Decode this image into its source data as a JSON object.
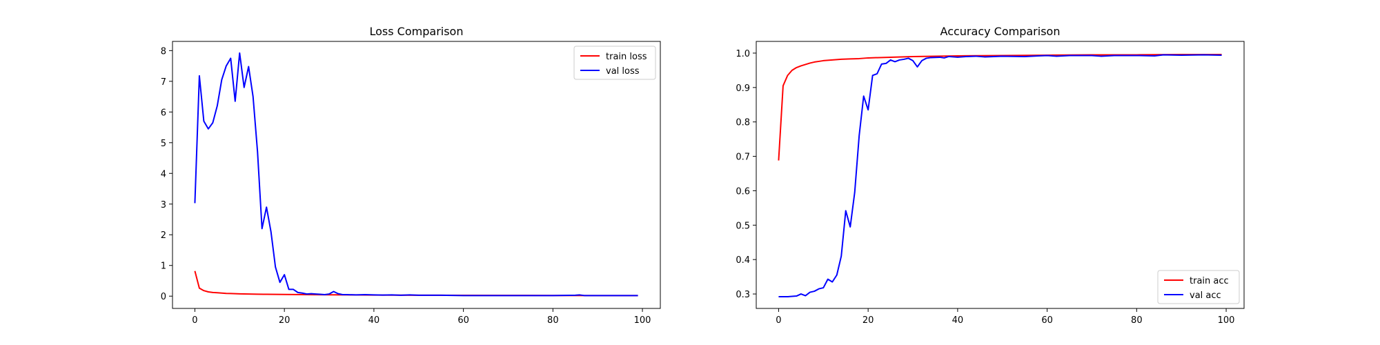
{
  "chart_data": [
    {
      "type": "line",
      "title": "Loss Comparison",
      "xlabel": "",
      "ylabel": "",
      "xlim": [
        -5,
        104
      ],
      "ylim": [
        -0.4,
        8.3
      ],
      "x_ticks": [
        0,
        20,
        40,
        60,
        80,
        100
      ],
      "y_ticks": [
        0,
        1,
        2,
        3,
        4,
        5,
        6,
        7,
        8
      ],
      "grid": false,
      "legend_position": "top-right",
      "series": [
        {
          "name": "train loss",
          "color": "#ff0000",
          "points": [
            [
              0,
              0.82
            ],
            [
              1,
              0.26
            ],
            [
              2,
              0.18
            ],
            [
              3,
              0.14
            ],
            [
              4,
              0.12
            ],
            [
              5,
              0.11
            ],
            [
              6,
              0.1
            ],
            [
              7,
              0.09
            ],
            [
              8,
              0.085
            ],
            [
              9,
              0.08
            ],
            [
              10,
              0.075
            ],
            [
              12,
              0.07
            ],
            [
              14,
              0.065
            ],
            [
              16,
              0.06
            ],
            [
              18,
              0.058
            ],
            [
              20,
              0.055
            ],
            [
              25,
              0.05
            ],
            [
              30,
              0.045
            ],
            [
              35,
              0.04
            ],
            [
              40,
              0.036
            ],
            [
              50,
              0.03
            ],
            [
              60,
              0.027
            ],
            [
              70,
              0.025
            ],
            [
              80,
              0.022
            ],
            [
              90,
              0.02
            ],
            [
              99,
              0.018
            ]
          ]
        },
        {
          "name": "val loss",
          "color": "#0000ff",
          "points": [
            [
              0,
              3.03
            ],
            [
              1,
              7.18
            ],
            [
              2,
              5.7
            ],
            [
              3,
              5.45
            ],
            [
              4,
              5.65
            ],
            [
              5,
              6.2
            ],
            [
              6,
              7.05
            ],
            [
              7,
              7.5
            ],
            [
              8,
              7.75
            ],
            [
              9,
              6.35
            ],
            [
              10,
              7.92
            ],
            [
              11,
              6.8
            ],
            [
              12,
              7.48
            ],
            [
              13,
              6.5
            ],
            [
              14,
              4.7
            ],
            [
              15,
              2.2
            ],
            [
              16,
              2.9
            ],
            [
              17,
              2.1
            ],
            [
              18,
              0.95
            ],
            [
              19,
              0.45
            ],
            [
              20,
              0.7
            ],
            [
              21,
              0.22
            ],
            [
              22,
              0.22
            ],
            [
              23,
              0.12
            ],
            [
              24,
              0.1
            ],
            [
              25,
              0.07
            ],
            [
              26,
              0.08
            ],
            [
              27,
              0.07
            ],
            [
              28,
              0.06
            ],
            [
              29,
              0.05
            ],
            [
              30,
              0.07
            ],
            [
              31,
              0.15
            ],
            [
              32,
              0.08
            ],
            [
              33,
              0.05
            ],
            [
              34,
              0.05
            ],
            [
              36,
              0.04
            ],
            [
              38,
              0.05
            ],
            [
              40,
              0.04
            ],
            [
              42,
              0.035
            ],
            [
              44,
              0.04
            ],
            [
              46,
              0.03
            ],
            [
              48,
              0.04
            ],
            [
              50,
              0.03
            ],
            [
              55,
              0.03
            ],
            [
              60,
              0.02
            ],
            [
              65,
              0.02
            ],
            [
              70,
              0.02
            ],
            [
              75,
              0.02
            ],
            [
              80,
              0.02
            ],
            [
              85,
              0.03
            ],
            [
              86,
              0.04
            ],
            [
              87,
              0.02
            ],
            [
              90,
              0.02
            ],
            [
              99,
              0.02
            ]
          ]
        }
      ]
    },
    {
      "type": "line",
      "title": "Accuracy Comparison",
      "xlabel": "",
      "ylabel": "",
      "xlim": [
        -5,
        104
      ],
      "ylim": [
        0.258,
        1.034
      ],
      "x_ticks": [
        0,
        20,
        40,
        60,
        80,
        100
      ],
      "y_ticks": [
        0.3,
        0.4,
        0.5,
        0.6,
        0.7,
        0.8,
        0.9,
        1.0
      ],
      "y_tick_labels": [
        "0.3",
        "0.4",
        "0.5",
        "0.6",
        "0.7",
        "0.8",
        "0.9",
        "1.0"
      ],
      "grid": false,
      "legend_position": "bottom-right",
      "series": [
        {
          "name": "train acc",
          "color": "#ff0000",
          "points": [
            [
              0,
              0.688
            ],
            [
              1,
              0.905
            ],
            [
              2,
              0.935
            ],
            [
              3,
              0.95
            ],
            [
              4,
              0.958
            ],
            [
              5,
              0.963
            ],
            [
              6,
              0.967
            ],
            [
              7,
              0.971
            ],
            [
              8,
              0.974
            ],
            [
              9,
              0.976
            ],
            [
              10,
              0.978
            ],
            [
              12,
              0.98
            ],
            [
              14,
              0.982
            ],
            [
              16,
              0.983
            ],
            [
              18,
              0.984
            ],
            [
              20,
              0.986
            ],
            [
              25,
              0.988
            ],
            [
              30,
              0.99
            ],
            [
              35,
              0.991
            ],
            [
              40,
              0.992
            ],
            [
              50,
              0.993
            ],
            [
              60,
              0.994
            ],
            [
              70,
              0.995
            ],
            [
              80,
              0.995
            ],
            [
              90,
              0.996
            ],
            [
              99,
              0.996
            ]
          ]
        },
        {
          "name": "val acc",
          "color": "#0000ff",
          "points": [
            [
              0,
              0.292
            ],
            [
              1,
              0.292
            ],
            [
              2,
              0.292
            ],
            [
              3,
              0.293
            ],
            [
              4,
              0.294
            ],
            [
              5,
              0.3
            ],
            [
              6,
              0.295
            ],
            [
              7,
              0.305
            ],
            [
              8,
              0.308
            ],
            [
              9,
              0.315
            ],
            [
              10,
              0.318
            ],
            [
              11,
              0.343
            ],
            [
              12,
              0.335
            ],
            [
              13,
              0.355
            ],
            [
              14,
              0.41
            ],
            [
              15,
              0.542
            ],
            [
              16,
              0.495
            ],
            [
              17,
              0.595
            ],
            [
              18,
              0.76
            ],
            [
              19,
              0.875
            ],
            [
              20,
              0.835
            ],
            [
              21,
              0.935
            ],
            [
              22,
              0.94
            ],
            [
              23,
              0.968
            ],
            [
              24,
              0.97
            ],
            [
              25,
              0.98
            ],
            [
              26,
              0.975
            ],
            [
              27,
              0.98
            ],
            [
              28,
              0.982
            ],
            [
              29,
              0.985
            ],
            [
              30,
              0.978
            ],
            [
              31,
              0.96
            ],
            [
              32,
              0.978
            ],
            [
              33,
              0.985
            ],
            [
              34,
              0.987
            ],
            [
              36,
              0.988
            ],
            [
              37,
              0.986
            ],
            [
              38,
              0.99
            ],
            [
              40,
              0.988
            ],
            [
              42,
              0.99
            ],
            [
              44,
              0.991
            ],
            [
              46,
              0.989
            ],
            [
              48,
              0.99
            ],
            [
              50,
              0.991
            ],
            [
              55,
              0.99
            ],
            [
              58,
              0.992
            ],
            [
              60,
              0.993
            ],
            [
              62,
              0.991
            ],
            [
              65,
              0.993
            ],
            [
              70,
              0.993
            ],
            [
              72,
              0.991
            ],
            [
              75,
              0.993
            ],
            [
              80,
              0.993
            ],
            [
              84,
              0.992
            ],
            [
              86,
              0.995
            ],
            [
              90,
              0.994
            ],
            [
              95,
              0.995
            ],
            [
              99,
              0.994
            ]
          ]
        }
      ]
    }
  ]
}
